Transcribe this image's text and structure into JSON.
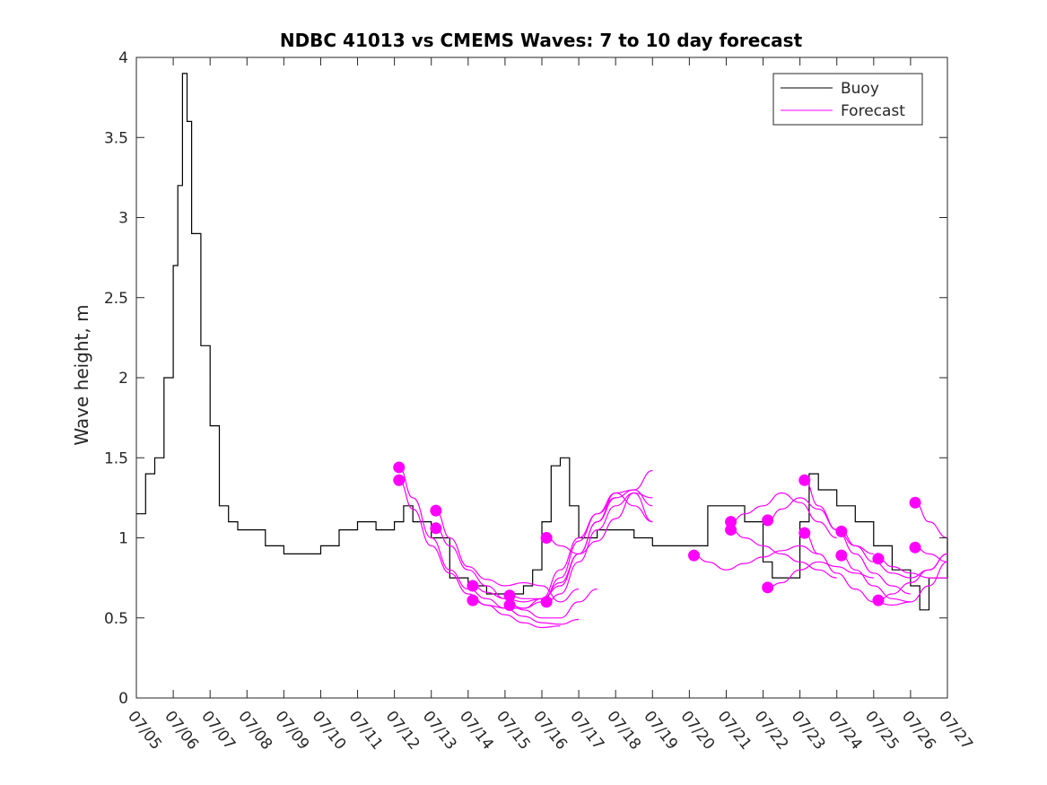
{
  "chart_data": {
    "type": "line",
    "title": "NDBC 41013 vs CMEMS Waves: 7 to 10 day forecast",
    "xlabel": "",
    "ylabel": "Wave height, m",
    "xlim": [
      "07/05",
      "07/27"
    ],
    "ylim": [
      0,
      4
    ],
    "x_tick_labels": [
      "07/05",
      "07/06",
      "07/07",
      "07/08",
      "07/09",
      "07/10",
      "07/11",
      "07/12",
      "07/13",
      "07/14",
      "07/15",
      "07/16",
      "07/17",
      "07/18",
      "07/19",
      "07/20",
      "07/21",
      "07/22",
      "07/23",
      "07/24",
      "07/25",
      "07/26",
      "07/27"
    ],
    "y_ticks": [
      0,
      0.5,
      1,
      1.5,
      2,
      2.5,
      3,
      3.5,
      4
    ],
    "y_tick_labels": [
      "0",
      "0.5",
      "1",
      "1.5",
      "2",
      "2.5",
      "3",
      "3.5",
      "4"
    ],
    "grid": false,
    "legend": {
      "placement": "top-right",
      "entries": [
        "Buoy",
        "Forecast"
      ]
    },
    "colors": {
      "buoy": "#000000",
      "forecast": "#ff00ff",
      "axes": "#262626"
    },
    "buoy": {
      "name": "Buoy",
      "x": [
        "07/05 00:00",
        "07/05 06:00",
        "07/05 12:00",
        "07/05 18:00",
        "07/06 00:00",
        "07/06 03:00",
        "07/06 06:00",
        "07/06 09:00",
        "07/06 12:00",
        "07/06 18:00",
        "07/07 00:00",
        "07/07 06:00",
        "07/07 12:00",
        "07/07 18:00",
        "07/08 00:00",
        "07/08 12:00",
        "07/09 00:00",
        "07/09 12:00",
        "07/10 00:00",
        "07/10 12:00",
        "07/11 00:00",
        "07/11 12:00",
        "07/12 00:00",
        "07/12 06:00",
        "07/12 12:00",
        "07/13 00:00",
        "07/13 12:00",
        "07/14 00:00",
        "07/14 12:00",
        "07/15 00:00",
        "07/15 12:00",
        "07/15 18:00",
        "07/16 00:00",
        "07/16 06:00",
        "07/16 12:00",
        "07/16 18:00",
        "07/17 00:00",
        "07/17 12:00",
        "07/18 00:00",
        "07/18 12:00",
        "07/19 00:00",
        "07/19 12:00",
        "07/20 00:00",
        "07/20 12:00",
        "07/21 00:00",
        "07/21 12:00",
        "07/22 00:00",
        "07/22 06:00",
        "07/22 12:00",
        "07/23 00:00",
        "07/23 06:00",
        "07/23 12:00",
        "07/24 00:00",
        "07/24 12:00",
        "07/25 00:00",
        "07/25 12:00",
        "07/26 00:00",
        "07/26 06:00",
        "07/26 12:00",
        "07/27 00:00"
      ],
      "y": [
        1.15,
        1.4,
        1.5,
        2.0,
        2.7,
        3.2,
        3.9,
        3.6,
        2.9,
        2.2,
        1.7,
        1.2,
        1.1,
        1.05,
        1.05,
        0.95,
        0.9,
        0.9,
        0.95,
        1.05,
        1.1,
        1.05,
        1.1,
        1.2,
        1.1,
        1.0,
        0.75,
        0.7,
        0.65,
        0.65,
        0.7,
        0.8,
        1.1,
        1.45,
        1.5,
        1.2,
        1.0,
        1.05,
        1.05,
        1.0,
        0.95,
        0.95,
        0.95,
        1.2,
        1.2,
        1.1,
        0.85,
        0.75,
        0.75,
        1.1,
        1.4,
        1.3,
        1.2,
        1.1,
        0.95,
        0.8,
        0.7,
        0.55,
        0.75,
        1.0
      ]
    },
    "forecast": {
      "name": "Forecast",
      "runs": [
        {
          "x": [
            "07/12 03:00",
            "07/12 12:00",
            "07/13 00:00",
            "07/13 12:00",
            "07/14 00:00",
            "07/14 12:00",
            "07/15 00:00",
            "07/15 12:00",
            "07/16 00:00",
            "07/16 12:00",
            "07/17 00:00"
          ],
          "y": [
            1.44,
            1.25,
            1.0,
            0.8,
            0.68,
            0.62,
            0.56,
            0.51,
            0.47,
            0.46,
            0.49
          ]
        },
        {
          "x": [
            "07/12 03:00",
            "07/12 12:00",
            "07/13 00:00",
            "07/13 12:00",
            "07/14 00:00",
            "07/14 12:00",
            "07/15 00:00",
            "07/15 12:00",
            "07/16 00:00",
            "07/16 12:00"
          ],
          "y": [
            1.36,
            1.18,
            0.95,
            0.78,
            0.65,
            0.58,
            0.52,
            0.47,
            0.44,
            0.45
          ]
        },
        {
          "x": [
            "07/13 03:00",
            "07/13 12:00",
            "07/14 00:00",
            "07/14 12:00",
            "07/15 00:00",
            "07/15 12:00",
            "07/16 00:00",
            "07/16 12:00",
            "07/17 00:00"
          ],
          "y": [
            1.17,
            1.0,
            0.82,
            0.74,
            0.7,
            0.72,
            0.7,
            0.6,
            0.68
          ]
        },
        {
          "x": [
            "07/13 03:00",
            "07/13 12:00",
            "07/14 00:00",
            "07/14 12:00",
            "07/15 00:00",
            "07/15 12:00",
            "07/16 00:00",
            "07/16 12:00",
            "07/17 00:00",
            "07/17 12:00"
          ],
          "y": [
            1.06,
            0.95,
            0.8,
            0.7,
            0.62,
            0.55,
            0.5,
            0.5,
            0.6,
            0.68
          ]
        },
        {
          "x": [
            "07/14 03:00",
            "07/14 12:00",
            "07/15 00:00",
            "07/15 12:00",
            "07/16 00:00",
            "07/16 12:00",
            "07/17 00:00",
            "07/17 12:00",
            "07/18 00:00"
          ],
          "y": [
            0.7,
            0.66,
            0.62,
            0.6,
            0.62,
            0.72,
            0.9,
            1.1,
            1.25
          ]
        },
        {
          "x": [
            "07/14 03:00",
            "07/14 12:00",
            "07/15 00:00",
            "07/15 12:00",
            "07/16 00:00",
            "07/16 12:00",
            "07/17 00:00",
            "07/17 12:00",
            "07/18 00:00",
            "07/18 12:00",
            "07/19 00:00"
          ],
          "y": [
            0.61,
            0.58,
            0.56,
            0.56,
            0.62,
            0.8,
            1.0,
            1.15,
            1.25,
            1.3,
            1.42
          ]
        },
        {
          "x": [
            "07/15 03:00",
            "07/15 12:00",
            "07/16 00:00",
            "07/16 12:00",
            "07/17 00:00",
            "07/17 12:00",
            "07/18 00:00",
            "07/18 12:00",
            "07/19 00:00"
          ],
          "y": [
            0.64,
            0.62,
            0.62,
            0.7,
            0.9,
            1.1,
            1.28,
            1.2,
            1.1
          ]
        },
        {
          "x": [
            "07/15 03:00",
            "07/15 12:00",
            "07/16 00:00",
            "07/16 12:00",
            "07/17 00:00",
            "07/17 12:00",
            "07/18 00:00",
            "07/18 12:00",
            "07/19 00:00"
          ],
          "y": [
            0.58,
            0.56,
            0.6,
            0.75,
            0.98,
            1.15,
            1.28,
            1.3,
            1.2
          ]
        },
        {
          "x": [
            "07/16 03:00",
            "07/16 12:00",
            "07/17 00:00",
            "07/17 12:00",
            "07/18 00:00",
            "07/18 12:00",
            "07/19 00:00"
          ],
          "y": [
            1.0,
            0.95,
            0.9,
            0.98,
            1.12,
            1.28,
            1.25
          ]
        },
        {
          "x": [
            "07/16 03:00",
            "07/16 12:00",
            "07/17 00:00",
            "07/17 12:00",
            "07/18 00:00",
            "07/18 12:00",
            "07/19 00:00"
          ],
          "y": [
            0.6,
            0.65,
            0.85,
            1.05,
            1.2,
            1.28,
            1.1
          ]
        },
        {
          "x": [
            "07/20 03:00",
            "07/20 12:00",
            "07/21 00:00",
            "07/21 12:00",
            "07/22 00:00",
            "07/22 12:00",
            "07/23 00:00",
            "07/23 12:00"
          ],
          "y": [
            0.89,
            0.85,
            0.8,
            0.84,
            0.88,
            0.92,
            0.95,
            0.9
          ]
        },
        {
          "x": [
            "07/21 03:00",
            "07/21 12:00",
            "07/22 00:00",
            "07/22 12:00",
            "07/23 00:00",
            "07/23 12:00",
            "07/24 00:00"
          ],
          "y": [
            1.1,
            1.15,
            1.2,
            1.28,
            1.22,
            1.1,
            1.0
          ]
        },
        {
          "x": [
            "07/21 03:00",
            "07/21 12:00",
            "07/22 00:00",
            "07/22 12:00",
            "07/23 00:00",
            "07/23 12:00",
            "07/24 00:00"
          ],
          "y": [
            1.05,
            1.0,
            0.95,
            0.9,
            0.85,
            0.8,
            0.75
          ]
        },
        {
          "x": [
            "07/22 03:00",
            "07/22 12:00",
            "07/23 00:00",
            "07/23 12:00",
            "07/24 00:00",
            "07/24 12:00",
            "07/25 00:00"
          ],
          "y": [
            1.11,
            1.18,
            1.25,
            1.18,
            1.05,
            0.95,
            0.9
          ]
        },
        {
          "x": [
            "07/22 03:00",
            "07/22 12:00",
            "07/23 00:00",
            "07/23 12:00",
            "07/24 00:00",
            "07/24 12:00",
            "07/25 00:00"
          ],
          "y": [
            0.69,
            0.72,
            0.8,
            0.85,
            0.82,
            0.78,
            0.75
          ]
        },
        {
          "x": [
            "07/23 03:00",
            "07/23 12:00",
            "07/24 00:00",
            "07/24 12:00",
            "07/25 00:00",
            "07/25 12:00",
            "07/26 00:00"
          ],
          "y": [
            1.36,
            1.2,
            1.05,
            0.9,
            0.78,
            0.7,
            0.65
          ]
        },
        {
          "x": [
            "07/23 03:00",
            "07/23 12:00",
            "07/24 00:00",
            "07/24 12:00",
            "07/25 00:00",
            "07/25 12:00",
            "07/26 00:00"
          ],
          "y": [
            1.03,
            0.9,
            0.78,
            0.68,
            0.6,
            0.58,
            0.6
          ]
        },
        {
          "x": [
            "07/24 03:00",
            "07/24 12:00",
            "07/25 00:00",
            "07/25 12:00",
            "07/26 00:00",
            "07/26 12:00",
            "07/27 00:00"
          ],
          "y": [
            1.04,
            0.95,
            0.85,
            0.78,
            0.75,
            0.8,
            0.9
          ]
        },
        {
          "x": [
            "07/24 03:00",
            "07/24 12:00",
            "07/25 00:00",
            "07/25 12:00",
            "07/26 00:00",
            "07/26 12:00",
            "07/27 00:00"
          ],
          "y": [
            0.89,
            0.8,
            0.7,
            0.62,
            0.6,
            0.7,
            0.85
          ]
        },
        {
          "x": [
            "07/25 03:00",
            "07/25 12:00",
            "07/26 00:00",
            "07/26 12:00",
            "07/27 00:00"
          ],
          "y": [
            0.87,
            0.82,
            0.78,
            0.75,
            0.75
          ]
        },
        {
          "x": [
            "07/25 03:00",
            "07/25 12:00",
            "07/26 00:00",
            "07/26 12:00",
            "07/27 00:00"
          ],
          "y": [
            0.61,
            0.65,
            0.72,
            0.8,
            0.9
          ]
        },
        {
          "x": [
            "07/26 03:00",
            "07/26 12:00",
            "07/27 00:00"
          ],
          "y": [
            1.22,
            1.1,
            1.0
          ]
        },
        {
          "x": [
            "07/26 03:00",
            "07/26 12:00",
            "07/27 00:00"
          ],
          "y": [
            0.94,
            0.9,
            0.85
          ]
        }
      ]
    }
  }
}
